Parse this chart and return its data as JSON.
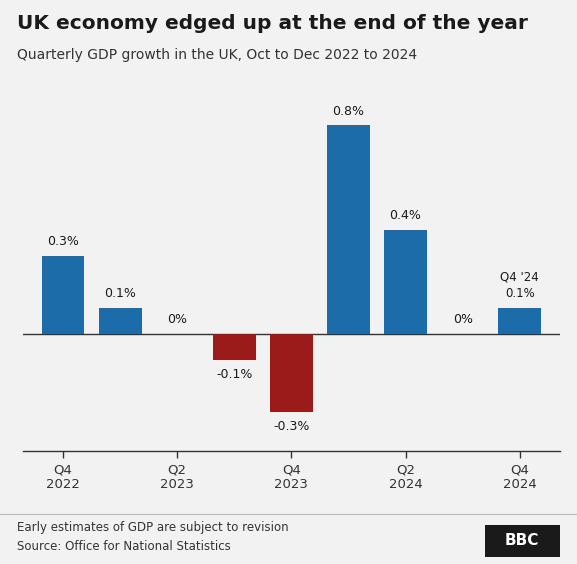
{
  "title": "UK economy edged up at the end of the year",
  "subtitle": "Quarterly GDP growth in the UK, Oct to Dec 2022 to 2024",
  "values": [
    0.3,
    0.1,
    0.0,
    -0.1,
    -0.3,
    0.8,
    0.4,
    0.0,
    0.1
  ],
  "bar_colors": [
    "#1b6ca8",
    "#1b6ca8",
    "#1b6ca8",
    "#9b1b1b",
    "#9b1b1b",
    "#1b6ca8",
    "#1b6ca8",
    "#1b6ca8",
    "#1b6ca8"
  ],
  "x_tick_positions": [
    0,
    2,
    4,
    6,
    8
  ],
  "x_tick_labels": [
    "Q4\n2022",
    "Q2\n2023",
    "Q4\n2023",
    "Q2\n2024",
    "Q4\n2024"
  ],
  "value_labels": [
    "0.3%",
    "0.1%",
    "0%",
    "-0.1%",
    "-0.3%",
    "0.8%",
    "0.4%",
    "0%",
    "0.1%"
  ],
  "ylim": [
    -0.45,
    1.0
  ],
  "background_color": "#f2f2f2",
  "note": "Early estimates of GDP are subject to revision",
  "source": "Source: Office for National Statistics"
}
